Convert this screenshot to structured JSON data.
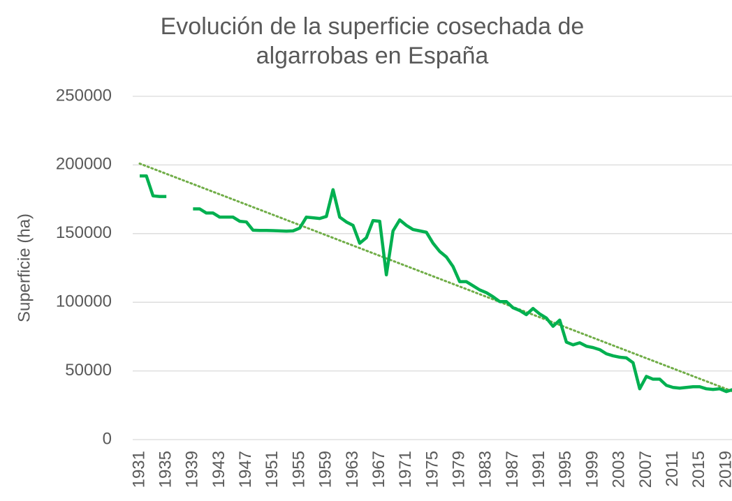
{
  "chart_data": {
    "type": "line",
    "title": [
      "Evolución de la superficie cosechada de",
      "algarrobas en España"
    ],
    "y_label": "Superficie (ha)",
    "x": [
      1931,
      1932,
      1933,
      1934,
      1935,
      1936,
      1937,
      1938,
      1939,
      1940,
      1941,
      1942,
      1943,
      1944,
      1945,
      1946,
      1947,
      1948,
      1949,
      1950,
      1951,
      1952,
      1953,
      1954,
      1955,
      1956,
      1957,
      1958,
      1959,
      1960,
      1961,
      1962,
      1963,
      1964,
      1965,
      1966,
      1967,
      1968,
      1969,
      1970,
      1971,
      1972,
      1973,
      1974,
      1975,
      1976,
      1977,
      1978,
      1979,
      1980,
      1981,
      1982,
      1983,
      1984,
      1985,
      1986,
      1987,
      1988,
      1989,
      1990,
      1991,
      1992,
      1993,
      1994,
      1995,
      1996,
      1997,
      1998,
      1999,
      2000,
      2001,
      2002,
      2003,
      2004,
      2005,
      2006,
      2007,
      2008,
      2009,
      2010,
      2011,
      2012,
      2013,
      2014,
      2015,
      2016,
      2017,
      2018,
      2019,
      2020
    ],
    "values": [
      192000,
      192000,
      177500,
      177000,
      177000,
      null,
      null,
      null,
      168000,
      168000,
      165000,
      165000,
      162000,
      162000,
      162000,
      159000,
      158500,
      152500,
      152300,
      152300,
      152200,
      152000,
      151800,
      152000,
      154000,
      162000,
      161500,
      161000,
      162500,
      182000,
      162000,
      158500,
      156000,
      143000,
      147000,
      159500,
      159000,
      120000,
      152000,
      160000,
      156000,
      153000,
      152000,
      151000,
      143000,
      137000,
      133000,
      126000,
      115000,
      115000,
      112000,
      109000,
      107000,
      104000,
      100500,
      100500,
      96000,
      94000,
      91000,
      95500,
      91500,
      88500,
      82500,
      87000,
      71000,
      69000,
      70500,
      68000,
      67000,
      65500,
      62500,
      61000,
      60000,
      59500,
      56000,
      37000,
      46000,
      44000,
      44000,
      39500,
      38000,
      37500,
      38000,
      38500,
      38500,
      37000,
      36500,
      37000,
      35000,
      36500
    ],
    "color": "#00b050",
    "trendline": {
      "x": [
        1931,
        2020
      ],
      "values": [
        201000,
        35000
      ],
      "color": "#70ad47"
    },
    "xlim": [
      1931,
      2020
    ],
    "xticks": [
      1931,
      1935,
      1939,
      1943,
      1947,
      1951,
      1955,
      1959,
      1963,
      1967,
      1971,
      1975,
      1979,
      1983,
      1987,
      1991,
      1995,
      1999,
      2003,
      2007,
      2011,
      2015,
      2019
    ],
    "ylim": [
      0,
      250000
    ],
    "yticks": [
      0,
      50000,
      100000,
      150000,
      200000,
      250000
    ],
    "grid": true
  }
}
